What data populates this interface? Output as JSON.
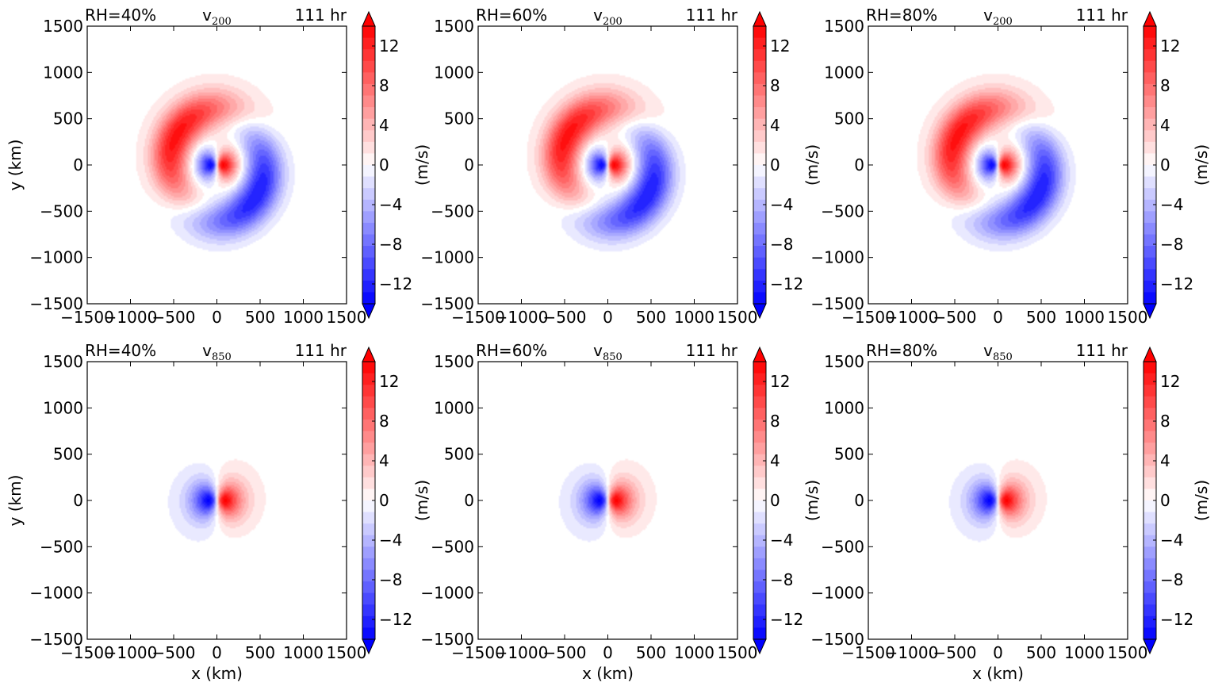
{
  "chart_data": {
    "type": "heatmap",
    "colormap": "bwr",
    "colors": {
      "negative": "#0000ff",
      "zero": "#ffffff",
      "positive": "#ff0000"
    },
    "x_ticks": [
      "−1500",
      "−1000",
      "−500",
      "0",
      "500",
      "1000",
      "1500"
    ],
    "y_ticks": [
      "1500",
      "1000",
      "500",
      "0",
      "−500",
      "−1000",
      "−1500"
    ],
    "xlim": [
      -1500,
      1500
    ],
    "ylim": [
      -1500,
      1500
    ],
    "colorbar": {
      "ticks": [
        "12",
        "8",
        "4",
        "0",
        "−4",
        "−8",
        "−12"
      ],
      "range": [
        -14,
        14
      ],
      "label": "(m/s)",
      "extend": "both"
    },
    "xlabel": "x (km)",
    "ylabel": "y (km)",
    "panels": [
      {
        "rh": "RH=40%",
        "var": "v",
        "sub": "200",
        "time": "111 hr",
        "level": "200",
        "vmax": 14,
        "show_ylabel": true,
        "show_xlabel": false,
        "show_cbar_label": false
      },
      {
        "rh": "RH=60%",
        "var": "v",
        "sub": "200",
        "time": "111 hr",
        "level": "200",
        "vmax": 14,
        "show_ylabel": false,
        "show_xlabel": false,
        "show_cbar_label": true
      },
      {
        "rh": "RH=80%",
        "var": "v",
        "sub": "200",
        "time": "111 hr",
        "level": "200",
        "vmax": 14,
        "show_ylabel": false,
        "show_xlabel": false,
        "show_cbar_label": true
      },
      {
        "rh": "RH=40%",
        "var": "v",
        "sub": "850",
        "time": "111 hr",
        "level": "850",
        "vmax": 14,
        "show_ylabel": true,
        "show_xlabel": true,
        "show_cbar_label": false
      },
      {
        "rh": "RH=60%",
        "var": "v",
        "sub": "850",
        "time": "111 hr",
        "level": "850",
        "vmax": 14,
        "show_ylabel": false,
        "show_xlabel": true,
        "show_cbar_label": true
      },
      {
        "rh": "RH=80%",
        "var": "v",
        "sub": "850",
        "time": "111 hr",
        "level": "850",
        "vmax": 14,
        "show_ylabel": false,
        "show_xlabel": true,
        "show_cbar_label": true
      }
    ]
  }
}
